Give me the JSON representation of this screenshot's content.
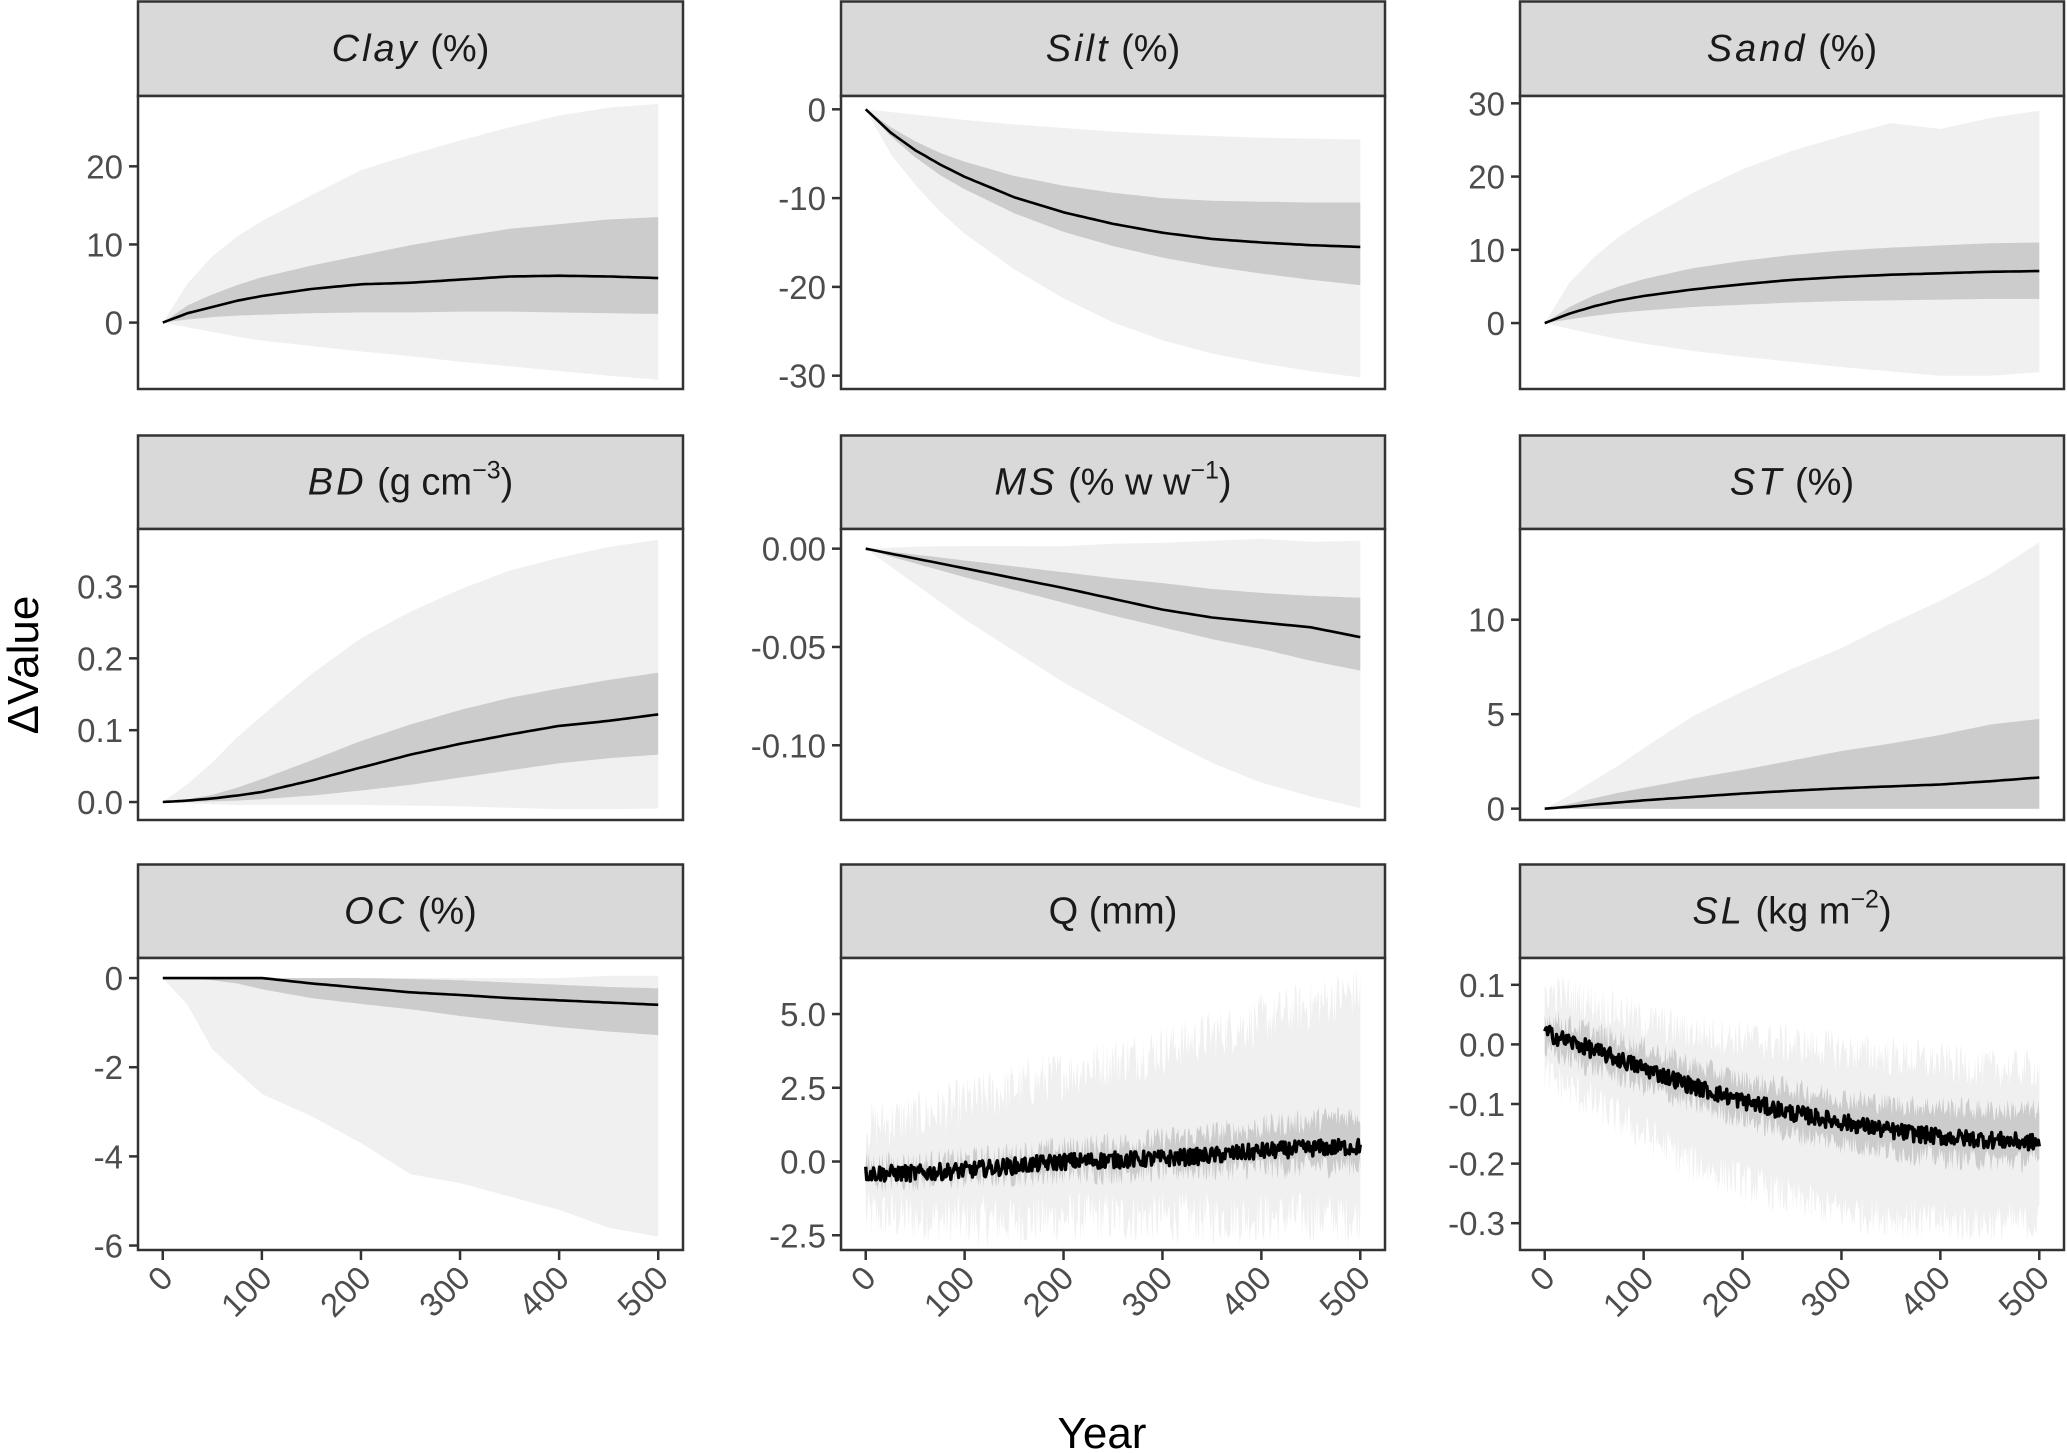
{
  "chart_data": {
    "type": "area",
    "layout": "facet-grid 3x3",
    "xlabel": "Year",
    "ylabel": "ΔValue",
    "x_ticks": [
      0,
      100,
      200,
      300,
      400,
      500
    ],
    "x_tick_labels": [
      "0",
      "100",
      "200",
      "300",
      "400",
      "500"
    ],
    "xlim": [
      -25,
      525
    ],
    "colors": {
      "outer_band": "#f0f0f0",
      "inner_band": "#cccccc",
      "median_line": "#000000",
      "strip_fill": "#d9d9d9",
      "frame": "#333333"
    },
    "legend": "none",
    "grid": false,
    "panels": [
      {
        "id": "clay",
        "var": "Clay",
        "unit": " (%)",
        "unit_sup": "",
        "ylim": [
          -8.5,
          29
        ],
        "y_ticks": [
          0,
          10,
          20
        ],
        "y_tick_labels": [
          "0",
          "10",
          "20"
        ],
        "noisy": false,
        "x": [
          0,
          25,
          50,
          75,
          100,
          150,
          200,
          250,
          300,
          350,
          400,
          450,
          500
        ],
        "median": [
          0,
          1.2,
          2.0,
          2.8,
          3.4,
          4.3,
          4.9,
          5.1,
          5.5,
          5.9,
          6.0,
          5.9,
          5.7
        ],
        "inner_lo": [
          0,
          0.4,
          0.7,
          0.9,
          1.0,
          1.2,
          1.3,
          1.3,
          1.4,
          1.4,
          1.3,
          1.2,
          1.1
        ],
        "inner_hi": [
          0,
          2.2,
          3.6,
          4.8,
          5.8,
          7.3,
          8.6,
          9.9,
          11.0,
          12.0,
          12.6,
          13.2,
          13.5
        ],
        "outer_lo": [
          0,
          -0.6,
          -1.2,
          -1.8,
          -2.3,
          -3.0,
          -3.7,
          -4.3,
          -5.0,
          -5.6,
          -6.2,
          -6.8,
          -7.3
        ],
        "outer_hi": [
          0,
          5.0,
          8.5,
          11.0,
          13.0,
          16.3,
          19.5,
          21.5,
          23.3,
          25.0,
          26.5,
          27.5,
          28.0
        ]
      },
      {
        "id": "silt",
        "var": "Silt",
        "unit": " (%)",
        "unit_sup": "",
        "ylim": [
          -31.5,
          1.5
        ],
        "y_ticks": [
          0,
          -10,
          -20,
          -30
        ],
        "y_tick_labels": [
          "0",
          "-10",
          "-20",
          "-30"
        ],
        "noisy": false,
        "x": [
          0,
          25,
          50,
          75,
          100,
          150,
          200,
          250,
          300,
          350,
          400,
          450,
          500
        ],
        "median": [
          0,
          -2.6,
          -4.6,
          -6.2,
          -7.6,
          -9.9,
          -11.6,
          -12.9,
          -13.9,
          -14.6,
          -15.0,
          -15.3,
          -15.5
        ],
        "inner_lo": [
          0,
          -3.0,
          -5.4,
          -7.4,
          -9.0,
          -11.7,
          -13.8,
          -15.4,
          -16.7,
          -17.7,
          -18.5,
          -19.2,
          -19.8
        ],
        "inner_hi": [
          0,
          -2.0,
          -3.6,
          -4.9,
          -5.9,
          -7.5,
          -8.6,
          -9.4,
          -10.0,
          -10.3,
          -10.4,
          -10.5,
          -10.5
        ],
        "outer_lo": [
          0,
          -5.0,
          -8.5,
          -11.5,
          -14.0,
          -18.0,
          -21.3,
          -24.0,
          -26.0,
          -27.5,
          -28.6,
          -29.5,
          -30.2
        ],
        "outer_hi": [
          0,
          -0.3,
          -0.6,
          -0.9,
          -1.2,
          -1.7,
          -2.1,
          -2.5,
          -2.8,
          -3.0,
          -3.2,
          -3.3,
          -3.4
        ]
      },
      {
        "id": "sand",
        "var": "Sand",
        "unit": " (%)",
        "unit_sup": "",
        "ylim": [
          -9,
          31
        ],
        "y_ticks": [
          0,
          10,
          20,
          30
        ],
        "y_tick_labels": [
          "0",
          "10",
          "20",
          "30"
        ],
        "noisy": false,
        "x": [
          0,
          25,
          50,
          75,
          100,
          150,
          200,
          250,
          300,
          350,
          400,
          450,
          500
        ],
        "median": [
          0,
          1.3,
          2.3,
          3.1,
          3.7,
          4.6,
          5.3,
          5.9,
          6.3,
          6.6,
          6.8,
          7.0,
          7.1
        ],
        "inner_lo": [
          0,
          0.5,
          1.0,
          1.4,
          1.7,
          2.2,
          2.5,
          2.8,
          3.0,
          3.1,
          3.2,
          3.3,
          3.3
        ],
        "inner_hi": [
          0,
          2.2,
          3.8,
          5.0,
          6.0,
          7.5,
          8.5,
          9.3,
          9.9,
          10.3,
          10.6,
          10.9,
          11.0
        ],
        "outer_lo": [
          0,
          -0.8,
          -1.5,
          -2.2,
          -2.8,
          -3.8,
          -4.6,
          -5.3,
          -6.0,
          -6.6,
          -7.2,
          -7.2,
          -6.7
        ],
        "outer_hi": [
          0,
          5.5,
          9.0,
          11.8,
          14.0,
          17.8,
          21.0,
          23.5,
          25.5,
          27.3,
          26.5,
          28.0,
          29.0
        ]
      },
      {
        "id": "bd",
        "var": "BD",
        "unit": " (g cm",
        "unit_sup": "−3",
        "unit_close": ")",
        "ylim": [
          -0.025,
          0.38
        ],
        "y_ticks": [
          0.0,
          0.1,
          0.2,
          0.3
        ],
        "y_tick_labels": [
          "0.0",
          "0.1",
          "0.2",
          "0.3"
        ],
        "noisy": false,
        "x": [
          0,
          25,
          50,
          75,
          100,
          150,
          200,
          250,
          300,
          350,
          400,
          450,
          500
        ],
        "median": [
          0,
          0.002,
          0.005,
          0.009,
          0.014,
          0.03,
          0.048,
          0.066,
          0.081,
          0.094,
          0.106,
          0.113,
          0.122
        ],
        "inner_lo": [
          0,
          0.0,
          0.001,
          0.002,
          0.004,
          0.009,
          0.016,
          0.024,
          0.034,
          0.044,
          0.054,
          0.061,
          0.066
        ],
        "inner_hi": [
          0,
          0.004,
          0.01,
          0.02,
          0.032,
          0.058,
          0.085,
          0.108,
          0.128,
          0.145,
          0.158,
          0.17,
          0.18
        ],
        "outer_lo": [
          0,
          -0.002,
          -0.003,
          -0.004,
          -0.004,
          -0.004,
          -0.004,
          -0.005,
          -0.006,
          -0.008,
          -0.01,
          -0.01,
          -0.009
        ],
        "outer_hi": [
          0,
          0.025,
          0.055,
          0.09,
          0.12,
          0.178,
          0.228,
          0.265,
          0.296,
          0.322,
          0.34,
          0.355,
          0.365
        ]
      },
      {
        "id": "ms",
        "var": "MS",
        "unit": " (% w w",
        "unit_sup": "−1",
        "unit_close": ")",
        "ylim": [
          -0.138,
          0.01
        ],
        "y_ticks": [
          0.0,
          -0.05,
          -0.1
        ],
        "y_tick_labels": [
          "0.00",
          "-0.05",
          "-0.10"
        ],
        "noisy": false,
        "x": [
          0,
          25,
          50,
          75,
          100,
          150,
          200,
          250,
          300,
          350,
          400,
          450,
          500
        ],
        "median": [
          0,
          -0.0025,
          -0.005,
          -0.0075,
          -0.01,
          -0.015,
          -0.02,
          -0.0255,
          -0.031,
          -0.035,
          -0.0375,
          -0.04,
          -0.045
        ],
        "inner_lo": [
          0,
          -0.004,
          -0.0075,
          -0.011,
          -0.0145,
          -0.021,
          -0.0275,
          -0.034,
          -0.04,
          -0.046,
          -0.051,
          -0.057,
          -0.062
        ],
        "inner_hi": [
          0,
          -0.0015,
          -0.003,
          -0.0045,
          -0.006,
          -0.009,
          -0.012,
          -0.015,
          -0.0175,
          -0.0205,
          -0.0225,
          -0.024,
          -0.025
        ],
        "outer_lo": [
          0,
          -0.009,
          -0.018,
          -0.027,
          -0.036,
          -0.052,
          -0.068,
          -0.082,
          -0.096,
          -0.109,
          -0.119,
          -0.126,
          -0.132
        ],
        "outer_hi": [
          0,
          0.0005,
          0.001,
          0.0012,
          0.0013,
          0.0013,
          0.0012,
          0.0025,
          0.003,
          0.004,
          0.005,
          0.0035,
          0.004
        ]
      },
      {
        "id": "st",
        "var": "ST",
        "unit": " (%)",
        "unit_sup": "",
        "ylim": [
          -0.6,
          14.8
        ],
        "y_ticks": [
          0,
          5,
          10
        ],
        "y_tick_labels": [
          "0",
          "5",
          "10"
        ],
        "noisy": false,
        "x": [
          0,
          25,
          50,
          75,
          100,
          150,
          200,
          250,
          300,
          350,
          400,
          450,
          500
        ],
        "median": [
          0,
          0.1,
          0.22,
          0.33,
          0.44,
          0.62,
          0.8,
          0.95,
          1.08,
          1.18,
          1.28,
          1.45,
          1.65
        ],
        "inner_lo": [
          0,
          0.0,
          0.0,
          0.0,
          0.0,
          0.0,
          0.0,
          0.0,
          0.0,
          0.0,
          0.0,
          0.0,
          0.0
        ],
        "inner_hi": [
          0,
          0.25,
          0.55,
          0.85,
          1.1,
          1.6,
          2.05,
          2.55,
          3.05,
          3.45,
          3.9,
          4.45,
          4.75
        ],
        "outer_lo": [
          0,
          0.0,
          0.0,
          0.0,
          0.0,
          0.0,
          0.0,
          0.0,
          0.0,
          0.0,
          0.0,
          0.0,
          0.0
        ],
        "outer_hi": [
          0,
          0.7,
          1.5,
          2.3,
          3.2,
          4.9,
          6.2,
          7.4,
          8.5,
          9.8,
          11.0,
          12.4,
          14.1
        ]
      },
      {
        "id": "oc",
        "var": "OC",
        "unit": " (%)",
        "unit_sup": "",
        "ylim": [
          -6.1,
          0.45
        ],
        "y_ticks": [
          0,
          -2,
          -4,
          -6
        ],
        "y_tick_labels": [
          "0",
          "-2",
          "-4",
          "-6"
        ],
        "noisy": false,
        "x": [
          0,
          25,
          50,
          75,
          100,
          150,
          200,
          250,
          300,
          350,
          400,
          450,
          500
        ],
        "median": [
          0,
          0.0,
          0.0,
          0.0,
          0.0,
          -0.12,
          -0.22,
          -0.32,
          -0.38,
          -0.45,
          -0.5,
          -0.55,
          -0.6
        ],
        "inner_lo": [
          0,
          0.0,
          -0.05,
          -0.12,
          -0.25,
          -0.45,
          -0.58,
          -0.7,
          -0.85,
          -0.98,
          -1.1,
          -1.2,
          -1.28
        ],
        "inner_hi": [
          0,
          0.0,
          0.0,
          0.0,
          0.0,
          0.0,
          0.0,
          -0.02,
          -0.05,
          -0.1,
          -0.15,
          -0.2,
          -0.23
        ],
        "outer_lo": [
          0,
          -0.6,
          -1.6,
          -2.1,
          -2.6,
          -3.1,
          -3.7,
          -4.4,
          -4.6,
          -4.9,
          -5.2,
          -5.6,
          -5.8
        ],
        "outer_hi": [
          0,
          0.0,
          0.0,
          0.0,
          0.0,
          0.0,
          0.0,
          0.0,
          0.0,
          0.0,
          0.0,
          0.05,
          0.05
        ]
      },
      {
        "id": "q",
        "var": "Q",
        "var_upright": true,
        "unit": " (mm)",
        "unit_sup": "",
        "ylim": [
          -3.0,
          6.9
        ],
        "y_ticks": [
          -2.5,
          0.0,
          2.5,
          5.0
        ],
        "y_tick_labels": [
          "-2.5",
          "0.0",
          "2.5",
          "5.0"
        ],
        "noisy": true,
        "noise": {
          "median": 0.28,
          "inner": 0.45,
          "outer": 0.9
        },
        "x": [
          0,
          50,
          100,
          150,
          200,
          250,
          300,
          350,
          400,
          450,
          500
        ],
        "median": [
          -0.4,
          -0.4,
          -0.3,
          -0.15,
          0.0,
          0.05,
          0.1,
          0.2,
          0.35,
          0.45,
          0.5
        ],
        "inner_lo": [
          -0.6,
          -0.6,
          -0.55,
          -0.45,
          -0.4,
          -0.35,
          -0.3,
          -0.25,
          -0.2,
          -0.15,
          -0.1
        ],
        "inner_hi": [
          -0.1,
          -0.05,
          0.05,
          0.25,
          0.45,
          0.6,
          0.75,
          0.95,
          1.15,
          1.4,
          1.6
        ],
        "outer_lo": [
          -1.8,
          -1.9,
          -2.0,
          -2.0,
          -1.9,
          -1.9,
          -1.9,
          -1.9,
          -1.9,
          -1.9,
          -1.9
        ],
        "outer_hi": [
          1.2,
          1.5,
          2.0,
          2.5,
          3.0,
          3.4,
          3.8,
          4.3,
          4.8,
          5.3,
          5.8
        ]
      },
      {
        "id": "sl",
        "var": "SL",
        "unit": " (kg m",
        "unit_sup": "−2",
        "unit_close": ")",
        "ylim": [
          -0.345,
          0.145
        ],
        "y_ticks": [
          0.1,
          0.0,
          -0.1,
          -0.2,
          -0.3
        ],
        "y_tick_labels": [
          "0.1",
          "0.0",
          "-0.1",
          "-0.2",
          "-0.3"
        ],
        "noisy": true,
        "noise": {
          "median": 0.014,
          "inner": 0.02,
          "outer": 0.035
        },
        "x": [
          0,
          50,
          100,
          150,
          200,
          250,
          300,
          350,
          400,
          450,
          500
        ],
        "median": [
          0.02,
          -0.01,
          -0.04,
          -0.07,
          -0.095,
          -0.115,
          -0.13,
          -0.145,
          -0.155,
          -0.16,
          -0.165
        ],
        "inner_lo": [
          -0.01,
          -0.04,
          -0.07,
          -0.1,
          -0.125,
          -0.15,
          -0.165,
          -0.18,
          -0.19,
          -0.195,
          -0.195
        ],
        "inner_hi": [
          0.045,
          0.02,
          -0.005,
          -0.035,
          -0.06,
          -0.075,
          -0.09,
          -0.1,
          -0.105,
          -0.11,
          -0.11
        ],
        "outer_lo": [
          -0.05,
          -0.1,
          -0.15,
          -0.2,
          -0.23,
          -0.26,
          -0.28,
          -0.29,
          -0.3,
          -0.3,
          -0.3
        ],
        "outer_hi": [
          0.09,
          0.07,
          0.04,
          0.02,
          0.01,
          0.0,
          -0.01,
          -0.02,
          -0.03,
          -0.04,
          -0.04
        ]
      }
    ]
  }
}
